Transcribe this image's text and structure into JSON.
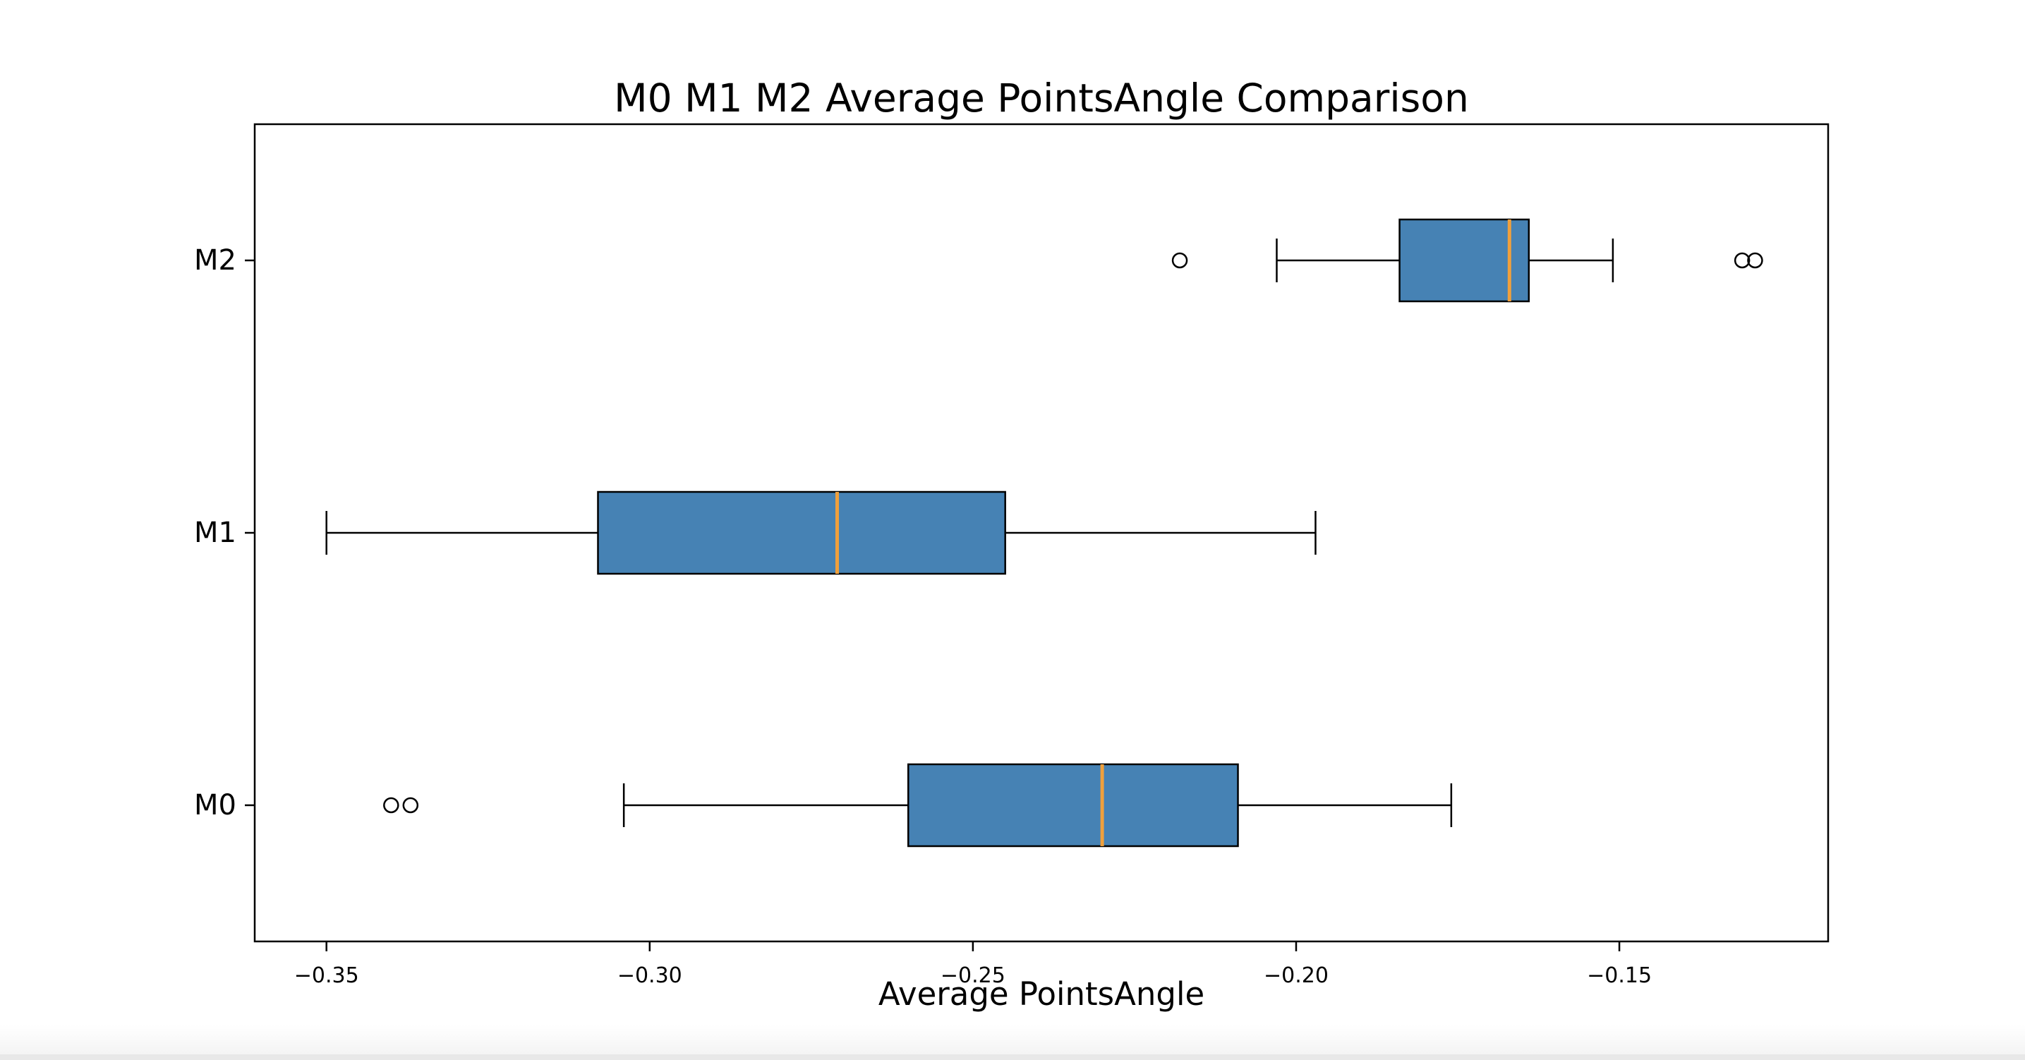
{
  "chart_data": {
    "type": "boxplot",
    "orientation": "horizontal",
    "title": "M0 M1 M2 Average PointsAngle Comparison",
    "xlabel": "Average PointsAngle",
    "ylabel": "",
    "grid": false,
    "legend": null,
    "xlim": [
      -0.3611,
      -0.1177
    ],
    "ylim": [
      0.5,
      3.5
    ],
    "xticks": {
      "values": [
        -0.35,
        -0.3,
        -0.25,
        -0.2,
        -0.15
      ],
      "labels": [
        "−0.35",
        "−0.30",
        "−0.25",
        "−0.20",
        "−0.15"
      ]
    },
    "categories": [
      "M0",
      "M1",
      "M2"
    ],
    "series": [
      {
        "name": "M0",
        "position": 1,
        "whisker_low": -0.304,
        "q1": -0.26,
        "median": -0.23,
        "q3": -0.209,
        "whisker_high": -0.176,
        "outliers": [
          -0.34,
          -0.337
        ]
      },
      {
        "name": "M1",
        "position": 2,
        "whisker_low": -0.35,
        "q1": -0.308,
        "median": -0.271,
        "q3": -0.245,
        "whisker_high": -0.197,
        "outliers": []
      },
      {
        "name": "M2",
        "position": 3,
        "whisker_low": -0.203,
        "q1": -0.184,
        "median": -0.167,
        "q3": -0.164,
        "whisker_high": -0.151,
        "outliers": [
          -0.218,
          -0.131,
          -0.129
        ]
      }
    ],
    "colors": {
      "box_fill": "#4682b4",
      "box_edge": "#000000",
      "whisker": "#000000",
      "median": "#f0a03c",
      "text": "#000000",
      "axes_frame": "#000000"
    }
  },
  "page": {
    "background": "#ffffff",
    "footer_bar_color": "#e8e8e8"
  }
}
